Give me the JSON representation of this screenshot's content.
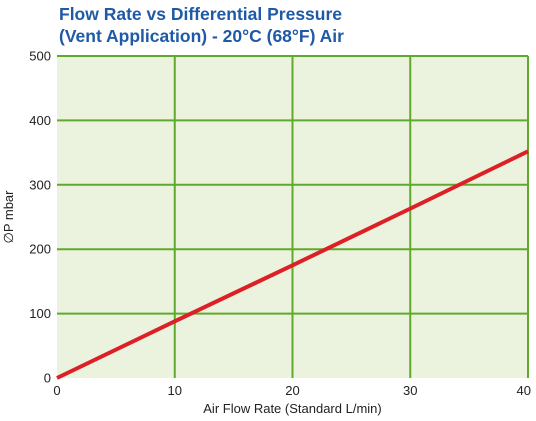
{
  "chart_data": {
    "type": "line",
    "title_line1": "Flow Rate vs Differential Pressure",
    "title_line2": "(Vent Application) - 20°C (68°F) Air",
    "xlabel": "Air Flow Rate (Standard L/min)",
    "ylabel": "∅P mbar",
    "xlim": [
      0,
      40
    ],
    "ylim": [
      0,
      500
    ],
    "x_ticks": [
      0,
      10,
      20,
      30,
      40
    ],
    "y_ticks": [
      0,
      100,
      200,
      300,
      400,
      500
    ],
    "grid": true,
    "series": [
      {
        "x": [
          0,
          10,
          20,
          30,
          40
        ],
        "y": [
          0,
          88,
          175,
          263,
          352
        ]
      }
    ],
    "colors": {
      "plot_background": "#ebf3df",
      "grid": "#5faa2c",
      "line": "#dd1f26",
      "title": "#1f5aa6"
    }
  }
}
